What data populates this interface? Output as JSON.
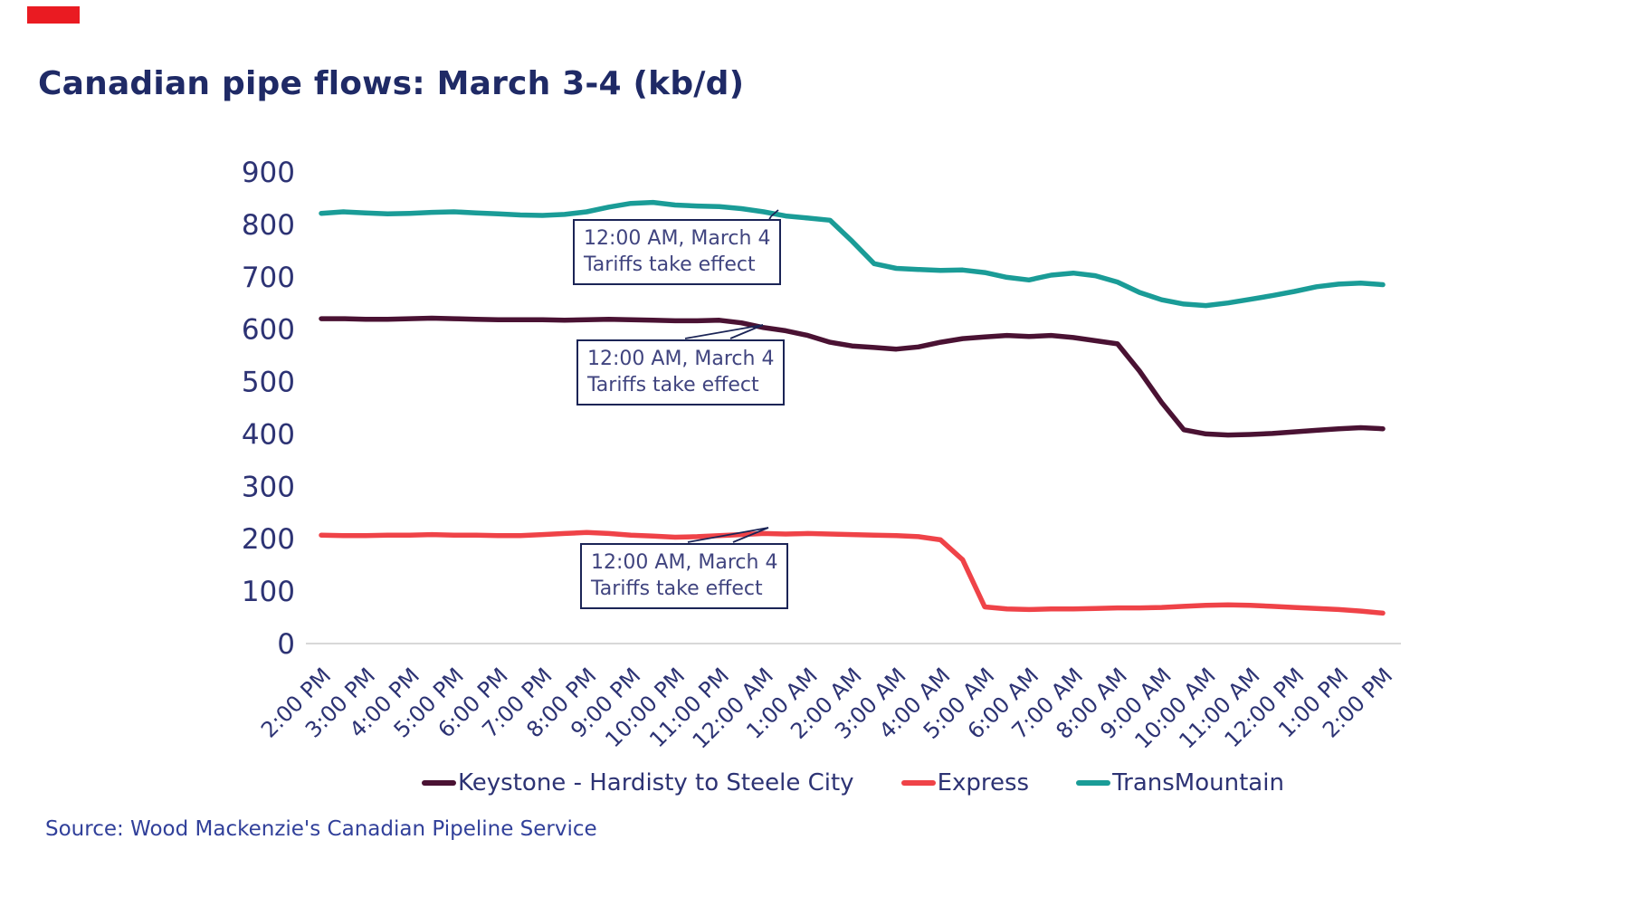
{
  "page": {
    "title": "Canadian pipe flows: March 3-4 (kb/d)",
    "source": "Source: Wood Mackenzie's Canadian Pipeline Service"
  },
  "colors": {
    "title_text": "#1f2a66",
    "axis_text": "#2d3374",
    "axis_line": "#d8d8d8",
    "annotation_border": "#1b2456",
    "annotation_text": "#40447f",
    "source_text": "#31409a",
    "red_marker": "#ea1b22",
    "keystone": "#4a1233",
    "express": "#ef4348",
    "transmountain": "#1a9c97"
  },
  "legend": {
    "items": [
      {
        "label": "Keystone - Hardisty to Steele City",
        "color": "#4a1233"
      },
      {
        "label": "Express",
        "color": "#ef4348"
      },
      {
        "label": "TransMountain",
        "color": "#1a9c97"
      }
    ]
  },
  "annotations": {
    "boxes": [
      {
        "line1": "12:00 AM, March 4",
        "line2": "Tariffs take effect",
        "points_to": "TransMountain line at 12:00 AM"
      },
      {
        "line1": "12:00 AM, March 4",
        "line2": "Tariffs take effect",
        "points_to": "Keystone line at 12:00 AM"
      },
      {
        "line1": "12:00 AM, March 4",
        "line2": "Tariffs take effect",
        "points_to": "Express line at 12:00 AM"
      }
    ]
  },
  "chart_data": {
    "type": "line",
    "title": "Canadian pipe flows: March 3-4 (kb/d)",
    "xlabel": "",
    "ylabel": "",
    "ylim": [
      0,
      900
    ],
    "y_ticks": [
      0,
      100,
      200,
      300,
      400,
      500,
      600,
      700,
      800,
      900
    ],
    "grid": false,
    "legend_position": "bottom",
    "x_tick_labels": [
      "2:00 PM",
      "3:00 PM",
      "4:00 PM",
      "5:00 PM",
      "6:00 PM",
      "7:00 PM",
      "8:00 PM",
      "9:00 PM",
      "10:00 PM",
      "11:00 PM",
      "12:00 AM",
      "1:00 AM",
      "2:00 AM",
      "3:00 AM",
      "4:00 AM",
      "5:00 AM",
      "6:00 AM",
      "7:00 AM",
      "8:00 AM",
      "9:00 AM",
      "10:00 AM",
      "11:00 AM",
      "12:00 PM",
      "1:00 PM",
      "2:00 PM"
    ],
    "x_note": "ticks hourly from 2:00 PM March 3 to 2:00 PM March 4; series sampled every 30 minutes (49 points)",
    "series": [
      {
        "name": "Keystone - Hardisty to Steele City",
        "color": "#4a1233",
        "values": [
          620,
          620,
          619,
          619,
          620,
          621,
          620,
          619,
          618,
          618,
          618,
          617,
          618,
          619,
          618,
          617,
          616,
          616,
          617,
          612,
          603,
          597,
          588,
          575,
          568,
          565,
          562,
          566,
          575,
          582,
          585,
          588,
          586,
          588,
          584,
          578,
          572,
          520,
          460,
          408,
          400,
          398,
          399,
          401,
          404,
          407,
          410,
          412,
          410
        ]
      },
      {
        "name": "Express",
        "color": "#ef4348",
        "values": [
          207,
          206,
          206,
          207,
          207,
          208,
          207,
          207,
          206,
          206,
          208,
          210,
          212,
          210,
          207,
          205,
          203,
          204,
          206,
          208,
          210,
          209,
          210,
          209,
          208,
          207,
          206,
          204,
          198,
          160,
          70,
          66,
          65,
          66,
          66,
          67,
          68,
          68,
          69,
          71,
          73,
          74,
          73,
          71,
          69,
          67,
          65,
          62,
          58
        ]
      },
      {
        "name": "TransMountain",
        "color": "#1a9c97",
        "values": [
          821,
          824,
          822,
          820,
          821,
          823,
          824,
          822,
          820,
          818,
          817,
          819,
          824,
          833,
          840,
          842,
          837,
          835,
          834,
          830,
          824,
          816,
          812,
          808,
          768,
          725,
          716,
          714,
          712,
          713,
          708,
          699,
          694,
          703,
          707,
          702,
          690,
          670,
          656,
          648,
          645,
          650,
          657,
          664,
          672,
          681,
          686,
          688,
          685
        ]
      }
    ]
  }
}
